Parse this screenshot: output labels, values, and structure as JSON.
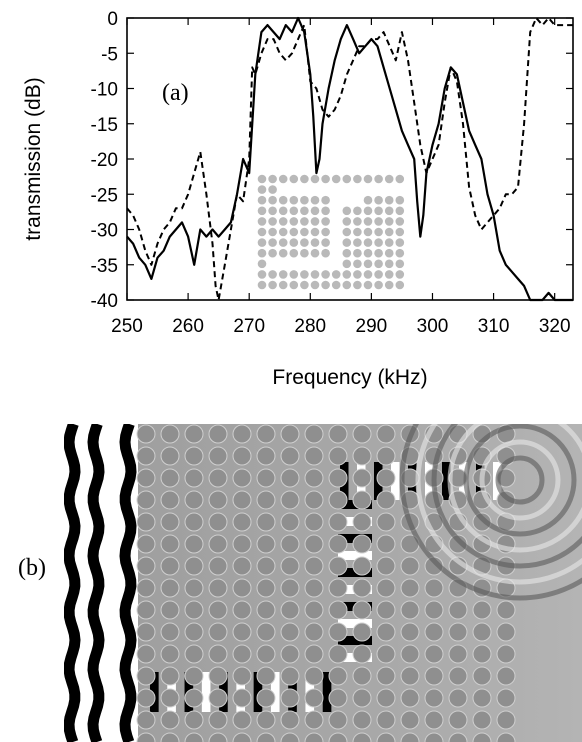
{
  "chart_data": [
    {
      "type": "line",
      "panel_label": "(a)",
      "title": "",
      "xlabel": "Frequency (kHz)",
      "ylabel": "transmission (dB)",
      "xlim": [
        250,
        323
      ],
      "ylim": [
        -40,
        0
      ],
      "xticks": [
        250,
        260,
        270,
        280,
        290,
        300,
        310,
        320
      ],
      "yticks": [
        0,
        -5,
        -10,
        -15,
        -20,
        -25,
        -30,
        -35,
        -40
      ],
      "series": [
        {
          "style": "solid",
          "x": [
            250,
            251,
            252,
            253,
            254,
            255,
            256,
            257,
            258,
            259,
            260,
            261,
            262,
            263,
            264,
            265,
            266,
            267,
            268,
            269,
            270,
            271,
            272,
            273,
            274,
            275,
            276,
            277,
            278,
            279,
            280,
            280.5,
            281,
            281.5,
            282,
            283,
            284,
            285,
            286,
            287,
            288,
            289,
            290,
            291,
            292,
            293,
            294,
            295,
            296,
            297,
            297.5,
            298,
            298.5,
            299,
            300,
            301,
            302,
            303,
            304,
            305,
            306,
            307,
            308,
            309,
            310,
            311,
            312,
            313,
            314,
            315,
            316,
            317,
            318,
            319,
            320,
            321,
            322,
            323
          ],
          "y": [
            -31,
            -32,
            -34,
            -35,
            -37,
            -34,
            -33,
            -31,
            -30,
            -29,
            -31,
            -35,
            -30,
            -31,
            -30,
            -31,
            -30,
            -29,
            -25,
            -20,
            -22,
            -8,
            -2,
            -1,
            -2,
            -3,
            -1,
            -2,
            0,
            -2,
            -8,
            -14,
            -22,
            -20,
            -15,
            -10,
            -6,
            -3,
            -1,
            -3,
            -5,
            -4,
            -3,
            -4,
            -7,
            -10,
            -13,
            -16,
            -18,
            -20,
            -26,
            -31,
            -28,
            -22,
            -18,
            -15,
            -10,
            -7,
            -8,
            -12,
            -16,
            -18,
            -20,
            -25,
            -28,
            -33,
            -35,
            -36,
            -37,
            -38,
            -40,
            -40,
            -40,
            -39,
            -40,
            -40,
            -40,
            -40
          ]
        },
        {
          "style": "dashed",
          "x": [
            250,
            251,
            252,
            253,
            254,
            255,
            256,
            257,
            258,
            259,
            260,
            261,
            262,
            263,
            264,
            264.5,
            265,
            266,
            267,
            268,
            269,
            270,
            270.5,
            271,
            272,
            273,
            274,
            275,
            276,
            277,
            278,
            279,
            280,
            281,
            282,
            283,
            284,
            285,
            286,
            287,
            288,
            289,
            290,
            291,
            292,
            293,
            294,
            295,
            296,
            297,
            298,
            299,
            300,
            301,
            302,
            303,
            304,
            305,
            306,
            307,
            308,
            309,
            310,
            311,
            312,
            313,
            314,
            315,
            316,
            317,
            318,
            319,
            320,
            321,
            322,
            323
          ],
          "y": [
            -27,
            -28,
            -30,
            -33,
            -35,
            -32,
            -30,
            -29,
            -27,
            -27,
            -25,
            -22,
            -19,
            -25,
            -32,
            -38,
            -40,
            -35,
            -30,
            -25,
            -26,
            -20,
            -7,
            -8,
            -5,
            -3,
            -3,
            -5,
            -6,
            -5,
            -3,
            -1,
            -9,
            -10,
            -13,
            -14,
            -13,
            -11,
            -8,
            -6,
            -4,
            -4,
            -3,
            -3,
            -2,
            -4,
            -6,
            -2,
            -6,
            -12,
            -18,
            -22,
            -20,
            -18,
            -12,
            -7,
            -9,
            -15,
            -24,
            -28,
            -30,
            -29,
            -28,
            -27,
            -25,
            -25,
            -24,
            -15,
            -2,
            0,
            -1,
            0,
            -1,
            -1,
            -1,
            -1
          ]
        }
      ]
    },
    {
      "type": "heatmap",
      "panel_label": "(b)"
    }
  ]
}
